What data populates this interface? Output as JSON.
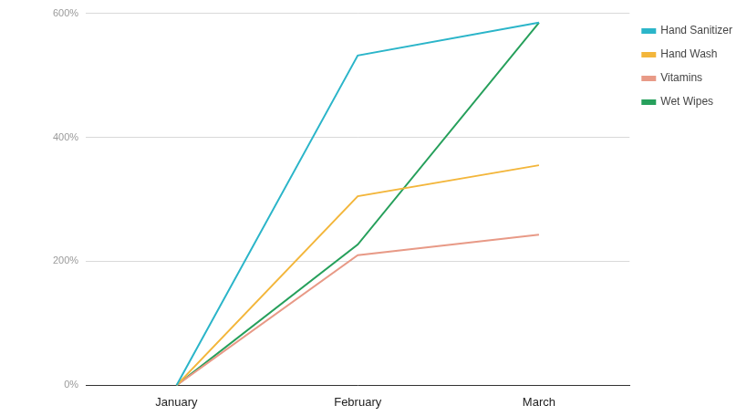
{
  "chart_data": {
    "type": "line",
    "categories": [
      "January",
      "February",
      "March"
    ],
    "series": [
      {
        "name": "Hand Sanitizer",
        "color": "#2bb5c9",
        "values": [
          0,
          532,
          585
        ]
      },
      {
        "name": "Hand Wash",
        "color": "#f3b63b",
        "values": [
          0,
          305,
          355
        ]
      },
      {
        "name": "Vitamins",
        "color": "#e89a87",
        "values": [
          0,
          210,
          243
        ]
      },
      {
        "name": "Wet Wipes",
        "color": "#27a05c",
        "values": [
          0,
          227,
          585
        ]
      }
    ],
    "ylim": [
      0,
      600
    ],
    "yticks": [
      {
        "value": 0,
        "label": "0%"
      },
      {
        "value": 200,
        "label": "200%"
      },
      {
        "value": 400,
        "label": "400%"
      },
      {
        "value": 600,
        "label": "600%"
      }
    ],
    "grid": true,
    "legend": "right"
  }
}
